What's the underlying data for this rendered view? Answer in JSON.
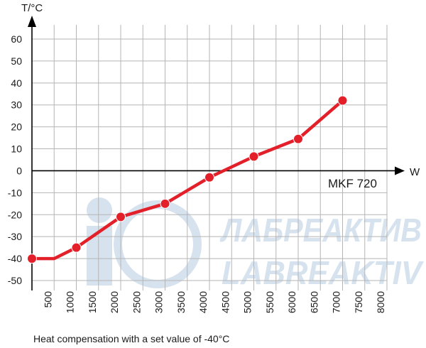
{
  "chart_data": {
    "type": "line",
    "ylabel": "T/°C",
    "xlabel": "W",
    "series_tag": "MKF 720",
    "caption": "Heat compensation with a set value of -40°C",
    "xlim": [
      0,
      8000
    ],
    "ylim": [
      -50,
      60
    ],
    "x_ticks": [
      500,
      1000,
      1500,
      2000,
      2500,
      3000,
      3500,
      4000,
      4500,
      5000,
      5500,
      6000,
      6500,
      7000,
      7500,
      8000
    ],
    "y_ticks": [
      60,
      50,
      40,
      30,
      20,
      10,
      0,
      -10,
      -20,
      -30,
      -40,
      -50
    ],
    "grid": true,
    "line_color": "#e3202a",
    "series": [
      {
        "x": [
          0,
          500,
          1000,
          2000,
          3000,
          4000,
          5000,
          6000,
          7000
        ],
        "y": [
          -40,
          -40,
          -35,
          -21,
          -15,
          -3,
          6.5,
          14.5,
          32
        ],
        "markers": [
          true,
          false,
          true,
          true,
          true,
          true,
          true,
          true,
          true
        ]
      }
    ]
  },
  "watermark": {
    "line1": "ЛАБРЕАКТИВ",
    "line2": "LABREAKTIV",
    "color": "#d6e2ee"
  }
}
